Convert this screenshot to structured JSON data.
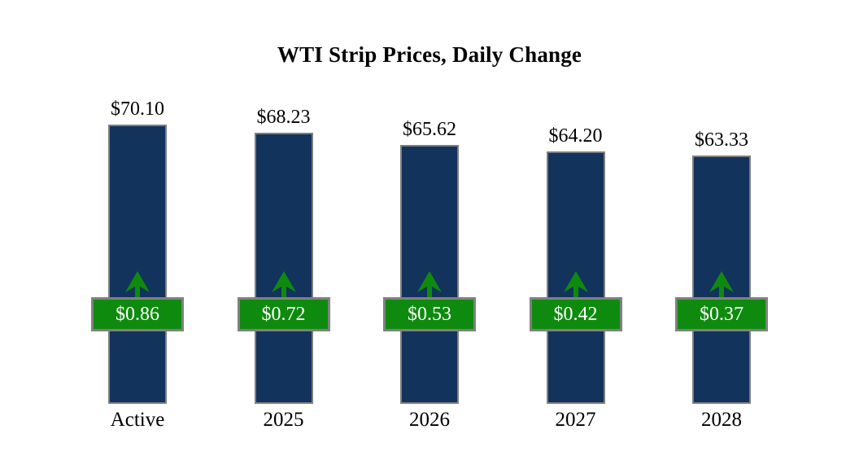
{
  "title": "WTI Strip Prices, Daily Change",
  "colors": {
    "background": "#ffffff",
    "bar": "#12335c",
    "bar_border": "#7f7f7f",
    "badge_bg": "#0e8b0e",
    "badge_border": "#808080",
    "badge_text": "#ffffff",
    "arrow": "#0e8b0e",
    "text": "#000000"
  },
  "chart_data": {
    "type": "bar",
    "title": "WTI Strip Prices, Daily Change",
    "categories": [
      "Active",
      "2025",
      "2026",
      "2027",
      "2028"
    ],
    "series": [
      {
        "name": "Strip Price",
        "values": [
          70.1,
          68.23,
          65.62,
          64.2,
          63.33
        ],
        "labels": [
          "$70.10",
          "$68.23",
          "$65.62",
          "$64.20",
          "$63.33"
        ]
      },
      {
        "name": "Daily Change",
        "values": [
          0.86,
          0.72,
          0.53,
          0.42,
          0.37
        ],
        "labels": [
          "$0.86",
          "$0.72",
          "$0.53",
          "$0.42",
          "$0.37"
        ],
        "direction": "up"
      }
    ],
    "ylim": [
      8.8,
      71.2
    ],
    "grid": false,
    "legend": "none",
    "axes_visible": false
  }
}
